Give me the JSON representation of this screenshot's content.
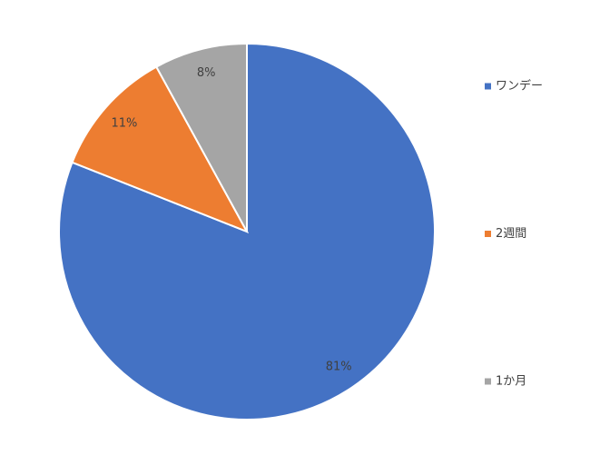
{
  "chart_data": {
    "type": "pie",
    "categories": [
      "ワンデー",
      "2週間",
      "1か月"
    ],
    "values": [
      81,
      11,
      8
    ],
    "value_labels": [
      "81%",
      "11%",
      "8%"
    ],
    "colors": [
      "#4472c4",
      "#ed7d31",
      "#a5a5a5"
    ],
    "legend": "right"
  }
}
